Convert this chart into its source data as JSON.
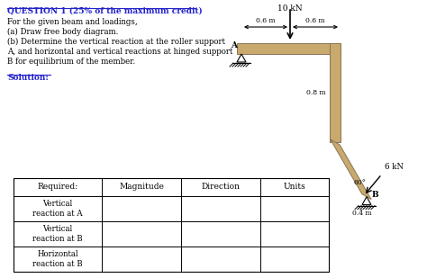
{
  "title": "QUESTION 1 (25% of the maximum credit)",
  "text_lines": [
    "For the given beam and loadings,",
    "(a) Draw free body diagram.",
    "(b) Determine the vertical reaction at the roller support",
    "A, and horizontal and vertical reactions at hinged support",
    "B for equilibrium of the member."
  ],
  "solution_label": "Solution:",
  "table_headers": [
    "Required:",
    "Magnitude",
    "Direction",
    "Units"
  ],
  "table_rows": [
    [
      "Vertical\nreaction at A",
      "",
      "",
      ""
    ],
    [
      "Vertical\nreaction at B",
      "",
      "",
      ""
    ],
    [
      "Horizontal\nreaction at B",
      "",
      "",
      ""
    ]
  ],
  "bg_color": "#ffffff",
  "beam_color": "#c8a96e",
  "beam_edge_color": "#8b7355",
  "text_color": "#000000",
  "title_color": "#2222cc",
  "label_10kN": "10 kN",
  "label_08m": "0.8 m",
  "label_04m": "0.4 m",
  "label_6kN": "6 kN",
  "label_60deg": "60°",
  "label_06m": "0.6 m",
  "label_A": "A",
  "label_B": "B"
}
